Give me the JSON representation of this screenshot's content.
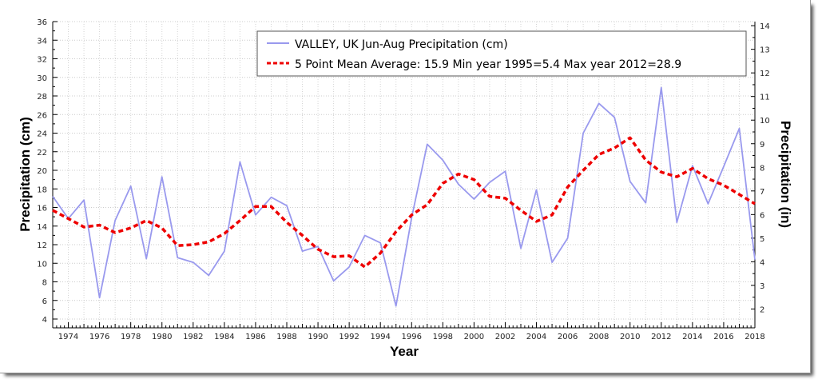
{
  "chart_data": {
    "type": "line",
    "title": "",
    "xlabel": "Year",
    "ylabel": "Precipitation (cm)",
    "y2label": "Precipitation (in)",
    "xlim": [
      1973,
      2018
    ],
    "ylim": [
      3,
      36
    ],
    "y2lim": [
      1.18,
      14.17
    ],
    "grid": true,
    "legend_position": "top-right",
    "x_ticks": [
      1974,
      1976,
      1978,
      1980,
      1982,
      1984,
      1986,
      1988,
      1990,
      1992,
      1994,
      1996,
      1998,
      2000,
      2002,
      2004,
      2006,
      2008,
      2010,
      2012,
      2014,
      2016,
      2018
    ],
    "y_ticks": [
      4,
      6,
      8,
      10,
      12,
      14,
      16,
      18,
      20,
      22,
      24,
      26,
      28,
      30,
      32,
      34,
      36
    ],
    "y2_ticks": [
      2,
      3,
      4,
      5,
      6,
      7,
      8,
      9,
      10,
      11,
      12,
      13,
      14
    ],
    "x": [
      1973,
      1974,
      1975,
      1976,
      1977,
      1978,
      1979,
      1980,
      1981,
      1982,
      1983,
      1984,
      1985,
      1986,
      1987,
      1988,
      1989,
      1990,
      1991,
      1992,
      1993,
      1994,
      1995,
      1996,
      1997,
      1998,
      1999,
      2000,
      2001,
      2002,
      2003,
      2004,
      2005,
      2006,
      2007,
      2008,
      2009,
      2010,
      2011,
      2012,
      2013,
      2014,
      2015,
      2016,
      2017,
      2018
    ],
    "series": [
      {
        "name": "VALLEY, UK  Jun-Aug  Precipitation (cm)",
        "style": "solid",
        "color": "#9999ee",
        "values": [
          17.2,
          14.8,
          16.8,
          6.3,
          14.6,
          18.3,
          10.5,
          19.3,
          10.6,
          10.1,
          8.7,
          11.3,
          20.9,
          15.2,
          17.1,
          16.2,
          11.3,
          11.8,
          8.1,
          9.6,
          13.0,
          12.2,
          5.4,
          14.9,
          22.8,
          21.1,
          18.5,
          16.9,
          18.7,
          19.9,
          11.6,
          17.9,
          10.1,
          12.7,
          24.0,
          27.2,
          25.7,
          18.8,
          16.5,
          28.9,
          14.4,
          20.5,
          16.4,
          20.4,
          24.5,
          10.4
        ]
      },
      {
        "name": "5 Point Mean  Average: 15.9  Min year 1995=5.4  Max year 2012=28.9",
        "style": "dashed",
        "color": "#ee0000",
        "values": [
          15.7,
          14.8,
          13.9,
          14.1,
          13.3,
          13.8,
          14.6,
          13.8,
          11.9,
          12.0,
          12.3,
          13.2,
          14.6,
          16.1,
          16.1,
          14.4,
          13.0,
          11.5,
          10.7,
          10.8,
          9.6,
          11.1,
          13.4,
          15.2,
          16.3,
          18.6,
          19.6,
          19.0,
          17.2,
          17.0,
          15.7,
          14.5,
          15.2,
          18.2,
          20.0,
          21.7,
          22.4,
          23.5,
          21.1,
          19.8,
          19.3,
          20.2,
          19.1,
          18.4,
          17.4,
          16.4
        ]
      }
    ]
  }
}
